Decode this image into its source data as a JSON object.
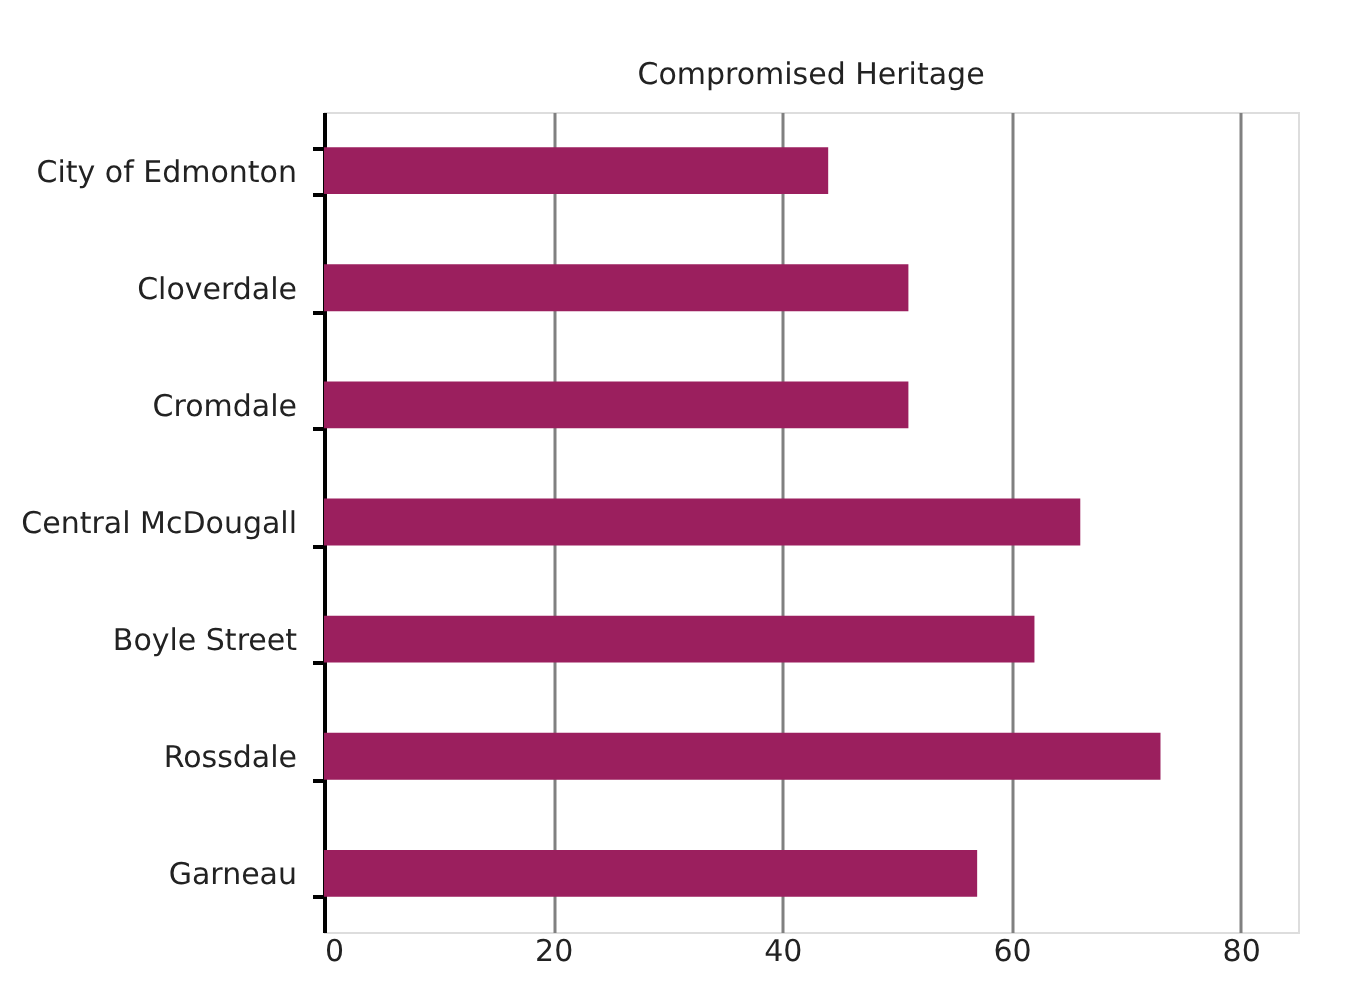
{
  "chart_data": {
    "type": "bar",
    "orientation": "horizontal",
    "title": "Compromised Heritage",
    "categories": [
      "City of Edmonton",
      "Cloverdale",
      "Cromdale",
      "Central McDougall",
      "Boyle Street",
      "Rossdale",
      "Garneau"
    ],
    "values": [
      44,
      51,
      51,
      66,
      62,
      73,
      57
    ],
    "color": "#9b1f5e",
    "xlim": [
      0,
      85
    ],
    "xticks": [
      0,
      20,
      40,
      60,
      80
    ],
    "grid": "x"
  }
}
